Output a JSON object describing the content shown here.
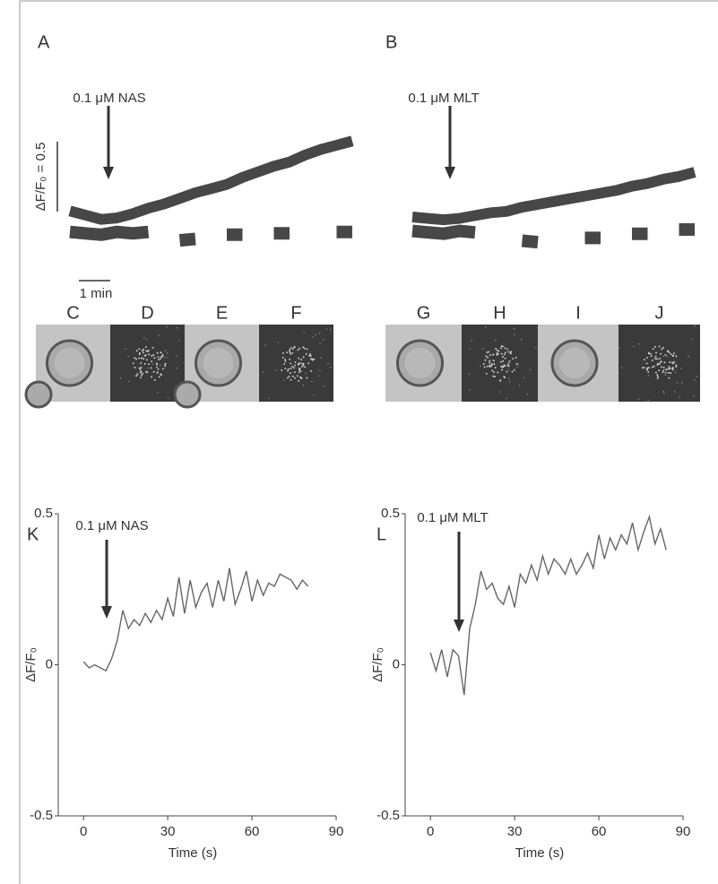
{
  "chart_data": [
    {
      "type": "trace",
      "panel_label": "A",
      "annotation": "0.1 μM NAS",
      "scale_bar": {
        "value": 0.5,
        "label": "ΔF/F₀ = 0.5"
      },
      "time_bar": {
        "value": 1,
        "label": "1 min"
      },
      "x": [
        0,
        0.5,
        1,
        1.5,
        2,
        2.5,
        3,
        3.5,
        4,
        4.5,
        5,
        5.5,
        6,
        6.5,
        7,
        7.5,
        8,
        8.5,
        9
      ],
      "series": [
        {
          "color": "#333333",
          "values": [
            0.03,
            0,
            -0.03,
            -0.02,
            0.01,
            0.05,
            0.08,
            0.12,
            0.16,
            0.19,
            0.22,
            0.27,
            0.31,
            0.35,
            0.38,
            0.43,
            0.47,
            0.5,
            0.53
          ]
        },
        {
          "color": "#333333",
          "values": [
            -0.12,
            -0.13,
            -0.14,
            -0.12,
            -0.13,
            -0.12,
            null,
            -0.18,
            -0.17,
            null,
            -0.14,
            -0.14,
            null,
            -0.13,
            -0.13,
            null,
            null,
            -0.12,
            -0.12
          ]
        }
      ]
    },
    {
      "type": "trace",
      "panel_label": "B",
      "annotation": "0.1 μM MLT",
      "x": [
        0,
        0.5,
        1,
        1.5,
        2,
        2.5,
        3,
        3.5,
        4,
        4.5,
        5,
        5.5,
        6,
        6.5,
        7,
        7.5,
        8,
        8.5,
        9
      ],
      "series": [
        {
          "color": "#333333",
          "values": [
            0,
            -0.01,
            -0.02,
            -0.01,
            0.01,
            0.03,
            0.04,
            0.07,
            0.09,
            0.11,
            0.13,
            0.15,
            0.17,
            0.19,
            0.22,
            0.24,
            0.27,
            0.29,
            0.32
          ]
        },
        {
          "color": "#333333",
          "values": [
            -0.1,
            -0.11,
            -0.12,
            -0.1,
            -0.11,
            null,
            null,
            -0.17,
            -0.18,
            null,
            null,
            -0.15,
            -0.15,
            null,
            -0.12,
            -0.12,
            null,
            -0.09,
            -0.09
          ]
        }
      ]
    },
    {
      "type": "line",
      "panel_label": "K",
      "annotation": "0.1 μM NAS",
      "x_label": "Time (s)",
      "y_label": "ΔF/F₀",
      "xlim": [
        -9,
        90
      ],
      "xticks": [
        0,
        30,
        60,
        90
      ],
      "ylim": [
        -0.5,
        0.5
      ],
      "yticks": [
        -0.5,
        0,
        0.5
      ],
      "color": "#666666",
      "x": [
        0,
        2,
        4,
        6,
        8,
        10,
        12,
        14,
        16,
        18,
        20,
        22,
        24,
        26,
        28,
        30,
        32,
        34,
        36,
        38,
        40,
        42,
        44,
        46,
        48,
        50,
        52,
        54,
        56,
        58,
        60,
        62,
        64,
        66,
        68,
        70,
        72,
        74,
        76,
        78,
        80
      ],
      "values": [
        0.01,
        -0.01,
        0,
        -0.01,
        -0.02,
        0.02,
        0.08,
        0.18,
        0.12,
        0.15,
        0.13,
        0.17,
        0.14,
        0.18,
        0.15,
        0.22,
        0.16,
        0.29,
        0.17,
        0.28,
        0.19,
        0.24,
        0.27,
        0.19,
        0.28,
        0.21,
        0.32,
        0.2,
        0.25,
        0.31,
        0.21,
        0.28,
        0.23,
        0.27,
        0.26,
        0.3,
        0.29,
        0.28,
        0.25,
        0.28,
        0.26
      ]
    },
    {
      "type": "line",
      "panel_label": "L",
      "annotation": "0.1 μM MLT",
      "x_label": "Time (s)",
      "y_label": "ΔF/F₀",
      "xlim": [
        -9,
        90
      ],
      "xticks": [
        0,
        30,
        60,
        90
      ],
      "ylim": [
        -0.5,
        0.5
      ],
      "yticks": [
        -0.5,
        0,
        0.5
      ],
      "color": "#666666",
      "x": [
        0,
        2,
        4,
        6,
        8,
        10,
        12,
        14,
        16,
        18,
        20,
        22,
        24,
        26,
        28,
        30,
        32,
        34,
        36,
        38,
        40,
        42,
        44,
        46,
        48,
        50,
        52,
        54,
        56,
        58,
        60,
        62,
        64,
        66,
        68,
        70,
        72,
        74,
        76,
        78,
        80,
        82,
        84
      ],
      "values": [
        0.04,
        -0.02,
        0.05,
        -0.04,
        0.05,
        0.03,
        -0.1,
        0.12,
        0.2,
        0.31,
        0.25,
        0.27,
        0.22,
        0.2,
        0.26,
        0.19,
        0.3,
        0.27,
        0.33,
        0.28,
        0.36,
        0.3,
        0.35,
        0.33,
        0.3,
        0.35,
        0.3,
        0.33,
        0.37,
        0.32,
        0.43,
        0.35,
        0.42,
        0.38,
        0.43,
        0.4,
        0.47,
        0.38,
        0.44,
        0.49,
        0.4,
        0.45,
        0.38
      ]
    }
  ],
  "image_panels": [
    "C",
    "D",
    "E",
    "F",
    "G",
    "H",
    "I",
    "J"
  ]
}
